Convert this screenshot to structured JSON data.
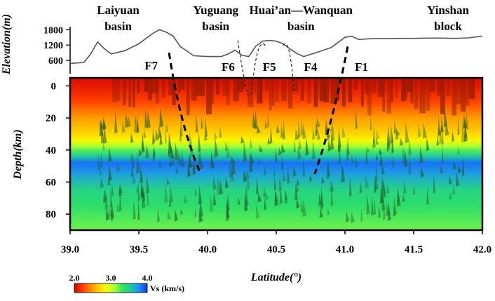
{
  "chart_data": [
    {
      "type": "line",
      "panel": "elevation profile",
      "ylabel": "Elevation(m)",
      "yticks": [
        600,
        1200,
        1800
      ],
      "ylim": [
        300,
        2000
      ],
      "xlim": [
        39.0,
        42.0
      ],
      "x": [
        39.0,
        39.1,
        39.15,
        39.2,
        39.25,
        39.3,
        39.4,
        39.5,
        39.6,
        39.65,
        39.7,
        39.75,
        39.8,
        39.9,
        40.0,
        40.1,
        40.15,
        40.2,
        40.25,
        40.3,
        40.35,
        40.4,
        40.45,
        40.5,
        40.55,
        40.6,
        40.65,
        40.7,
        40.8,
        40.9,
        41.0,
        41.05,
        41.1,
        41.2,
        41.3,
        41.4,
        41.5,
        41.6,
        41.7,
        41.8,
        41.9,
        42.0
      ],
      "y": [
        480,
        520,
        850,
        1320,
        1050,
        850,
        980,
        1250,
        1650,
        1800,
        1700,
        1550,
        1150,
        780,
        750,
        750,
        850,
        1000,
        800,
        750,
        1150,
        1350,
        1380,
        1350,
        1250,
        1050,
        870,
        750,
        920,
        1100,
        1500,
        1540,
        1420,
        1450,
        1450,
        1460,
        1460,
        1470,
        1470,
        1460,
        1480,
        1550
      ],
      "region_labels": [
        {
          "name": "Laiyuan\nbasin",
          "x": 39.35
        },
        {
          "name": "Yuguang\nbasin",
          "x": 40.06
        },
        {
          "name": "Huai’an—Wanquan\nbasin",
          "x": 40.68
        },
        {
          "name": "Yinshan\nblock",
          "x": 41.75
        }
      ]
    },
    {
      "type": "heatmap",
      "panel": "shear-wave velocity section",
      "xlabel": "Latitude(°)",
      "ylabel": "Depth(km)",
      "xlim": [
        39.0,
        42.0
      ],
      "ylim": [
        90,
        -5
      ],
      "xticks": [
        39.0,
        39.5,
        40.0,
        40.5,
        41.0,
        41.5,
        42.0
      ],
      "yticks": [
        0,
        20,
        40,
        60,
        80
      ],
      "depth_km": [
        -5,
        0,
        10,
        20,
        30,
        34,
        38,
        40,
        44,
        48,
        55,
        65,
        75,
        85,
        90
      ],
      "vs_km_s": [
        2.05,
        2.1,
        2.25,
        2.5,
        2.7,
        2.85,
        3.1,
        3.25,
        3.55,
        3.85,
        3.7,
        3.45,
        3.35,
        3.25,
        3.2
      ],
      "colorbar": {
        "label": "Vs (km/s)",
        "ticks": [
          2.0,
          3.0,
          4.0
        ],
        "range": [
          2.0,
          4.0
        ],
        "colors": [
          "#d40000",
          "#ff3a00",
          "#ff8c00",
          "#ffd000",
          "#f7ff00",
          "#9dff3a",
          "#2fe063",
          "#1ec9a0",
          "#1c8cff",
          "#1338e6"
        ]
      },
      "faults": [
        {
          "name": "F7",
          "x": [
            39.72,
            39.8,
            39.95
          ],
          "y": [
            -20,
            25,
            55
          ]
        },
        {
          "name": "F6",
          "x": [
            40.22,
            40.28,
            40.3
          ],
          "y": [
            -8,
            5,
            6
          ]
        },
        {
          "name": "F5",
          "x": [
            40.42,
            40.36,
            40.32
          ],
          "y": [
            -13,
            -2,
            5
          ]
        },
        {
          "name": "F4",
          "x": [
            40.55,
            40.6,
            40.63
          ],
          "y": [
            -13,
            -2,
            5
          ]
        },
        {
          "name": "F1",
          "x": [
            41.02,
            40.92,
            40.78
          ],
          "y": [
            -14,
            20,
            55
          ]
        }
      ]
    }
  ]
}
